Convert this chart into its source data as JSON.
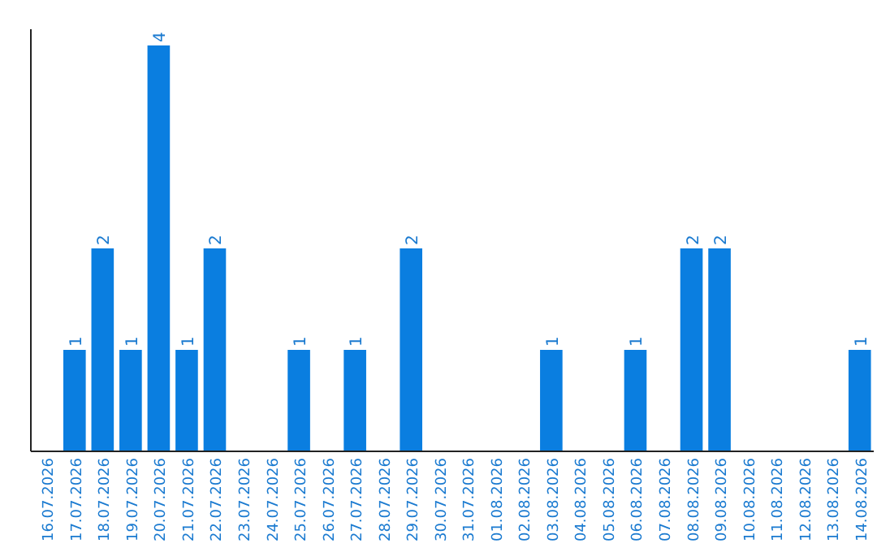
{
  "chart_data": {
    "type": "bar",
    "categories": [
      "16.07.2026",
      "17.07.2026",
      "18.07.2026",
      "19.07.2026",
      "20.07.2026",
      "21.07.2026",
      "22.07.2026",
      "23.07.2026",
      "24.07.2026",
      "25.07.2026",
      "26.07.2026",
      "27.07.2026",
      "28.07.2026",
      "29.07.2026",
      "30.07.2026",
      "31.07.2026",
      "01.08.2026",
      "02.08.2026",
      "03.08.2026",
      "04.08.2026",
      "05.08.2026",
      "06.08.2026",
      "07.08.2026",
      "08.08.2026",
      "09.08.2026",
      "10.08.2026",
      "11.08.2026",
      "12.08.2026",
      "13.08.2026",
      "14.08.2026"
    ],
    "values": [
      null,
      1,
      2,
      1,
      4,
      1,
      2,
      null,
      null,
      1,
      null,
      1,
      null,
      2,
      null,
      null,
      null,
      null,
      1,
      null,
      null,
      1,
      null,
      2,
      2,
      null,
      null,
      null,
      null,
      1
    ],
    "color": "#0a7ee0",
    "data_labels": true
  }
}
